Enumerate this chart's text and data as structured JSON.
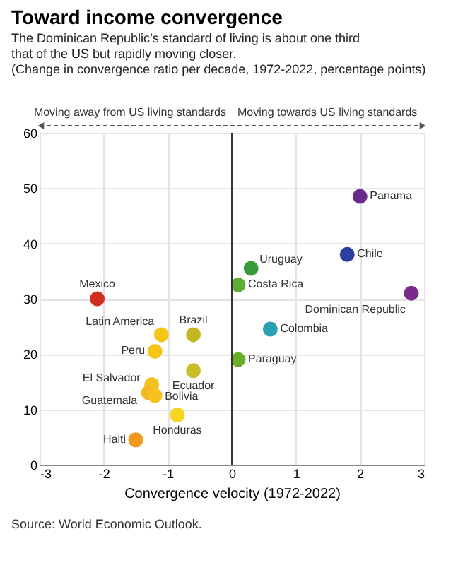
{
  "chart_data": {
    "type": "scatter",
    "title": "Toward income convergence",
    "subtitle": "The Dominican Republic’s standard of living is about one third that of the US but rapidly moving closer.",
    "annotations": [
      "(Change in convergence ratio per decade, 1972-2022, percentage points)",
      "Moving away from US living standards",
      "Moving towards US living standards",
      "Source: World Economic Outlook."
    ],
    "xlabel": "Convergence velocity (1972-2022)",
    "xlim": [
      -3,
      3
    ],
    "xticks": [
      -3,
      -2,
      -1,
      0,
      1,
      2,
      3
    ],
    "ylim": [
      0,
      60
    ],
    "yticks": [
      0,
      10,
      20,
      30,
      40,
      50,
      60
    ],
    "grid": true,
    "legend": false,
    "marker": "circle",
    "ref_lines": [
      {
        "axis": "x",
        "value": 0,
        "color": "#333333"
      }
    ],
    "series": [
      {
        "name": "Mexico",
        "color": "#d42e1e",
        "x": [
          -2.1
        ],
        "values": [
          30
        ]
      },
      {
        "name": "Latin America",
        "color": "#f5c518",
        "x": [
          -1.1
        ],
        "values": [
          23.5
        ]
      },
      {
        "name": "Brazil",
        "color": "#c4b623",
        "x": [
          -0.6
        ],
        "values": [
          23.5
        ]
      },
      {
        "name": "Peru",
        "color": "#f5c518",
        "x": [
          -1.2
        ],
        "values": [
          20.5
        ]
      },
      {
        "name": "Ecuador",
        "color": "#c8bd2a",
        "x": [
          -0.6
        ],
        "values": [
          17
        ]
      },
      {
        "name": "El Salvador",
        "color": "#f5c120",
        "x": [
          -1.25
        ],
        "values": [
          14.5
        ]
      },
      {
        "name": "Guatemala",
        "color": "#f5b820",
        "x": [
          -1.3
        ],
        "values": [
          13
        ]
      },
      {
        "name": "Bolivia",
        "color": "#f5c020",
        "x": [
          -1.2
        ],
        "values": [
          12.5
        ]
      },
      {
        "name": "Honduras",
        "color": "#f5d520",
        "x": [
          -0.85
        ],
        "values": [
          9
        ]
      },
      {
        "name": "Haiti",
        "color": "#ef9a1a",
        "x": [
          -1.5
        ],
        "values": [
          4.5
        ]
      },
      {
        "name": "Panama",
        "color": "#6a2a8c",
        "x": [
          2.0
        ],
        "values": [
          48.5
        ]
      },
      {
        "name": "Chile",
        "color": "#2c3fa0",
        "x": [
          1.8
        ],
        "values": [
          38
        ]
      },
      {
        "name": "Uruguay",
        "color": "#3a9a3a",
        "x": [
          0.3
        ],
        "values": [
          35.5
        ]
      },
      {
        "name": "Costa Rica",
        "color": "#5cae32",
        "x": [
          0.1
        ],
        "values": [
          32.5
        ]
      },
      {
        "name": "Colombia",
        "color": "#2aa0b0",
        "x": [
          0.6
        ],
        "values": [
          24.5
        ]
      },
      {
        "name": "Paraguay",
        "color": "#6aaf2a",
        "x": [
          0.1
        ],
        "values": [
          19
        ]
      },
      {
        "name": "Dominican Republic",
        "color": "#7a2a8a",
        "x": [
          2.8
        ],
        "values": [
          31
        ]
      }
    ]
  }
}
